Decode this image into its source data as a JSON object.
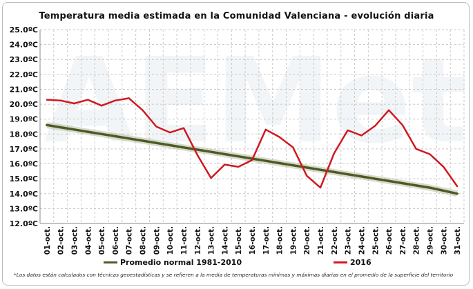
{
  "colors": {
    "normal": "#4d5a24",
    "y2016": "#d0181f",
    "grid": "#c8c8c8",
    "watermark": "#dbe4ea"
  },
  "chart_data": {
    "type": "line",
    "title": "Temperatura  media  estimada  en  la  Comunidad  Valenciana  -  evolución  diaria",
    "categories": [
      "01-oct.",
      "02-oct.",
      "03-oct.",
      "04-oct.",
      "05-oct.",
      "06-oct.",
      "07-oct.",
      "08-oct.",
      "09-oct.",
      "10-oct.",
      "11-oct.",
      "12-oct.",
      "13-oct.",
      "14-oct.",
      "15-oct.",
      "16-oct.",
      "17-oct.",
      "18-oct.",
      "19-oct.",
      "20-oct.",
      "21-oct.",
      "22-oct.",
      "23-oct.",
      "24-oct.",
      "25-oct.",
      "26-oct.",
      "27-oct.",
      "28-oct.",
      "29-oct.",
      "30-oct.",
      "31-oct."
    ],
    "y_tick_labels": [
      "12.0ºC",
      "13.0ºC",
      "14.0ºC",
      "15.0ºC",
      "16.0ºC",
      "17.0ºC",
      "18.0ºC",
      "19.0ºC",
      "20.0ºC",
      "21.0ºC",
      "22.0ºC",
      "23.0ºC",
      "24.0ºC",
      "25.0ºC"
    ],
    "ylim": [
      12,
      25
    ],
    "grid": true,
    "legend_position": "bottom",
    "series": [
      {
        "name": "Promedio normal 1981-2010",
        "values": [
          18.6,
          18.45,
          18.3,
          18.15,
          18.0,
          17.85,
          17.7,
          17.55,
          17.4,
          17.25,
          17.1,
          16.95,
          16.8,
          16.65,
          16.5,
          16.35,
          16.2,
          16.05,
          15.9,
          15.75,
          15.6,
          15.45,
          15.3,
          15.15,
          15.0,
          14.85,
          14.7,
          14.55,
          14.4,
          14.2,
          14.0
        ]
      },
      {
        "name": "2016",
        "values": [
          20.3,
          20.25,
          20.05,
          20.3,
          19.9,
          20.25,
          20.4,
          19.6,
          18.5,
          18.1,
          18.4,
          16.6,
          15.05,
          15.95,
          15.8,
          16.25,
          18.3,
          17.8,
          17.1,
          15.2,
          14.4,
          16.7,
          18.25,
          17.9,
          18.55,
          19.6,
          18.6,
          17.0,
          16.65,
          15.8,
          14.5
        ]
      }
    ]
  },
  "footnote": "*Los datos están calculados con técnicas geoestadísticas y se refieren a la media de temperaturas mínimas y máximas diarias en el promedio de la superficie del territorio"
}
